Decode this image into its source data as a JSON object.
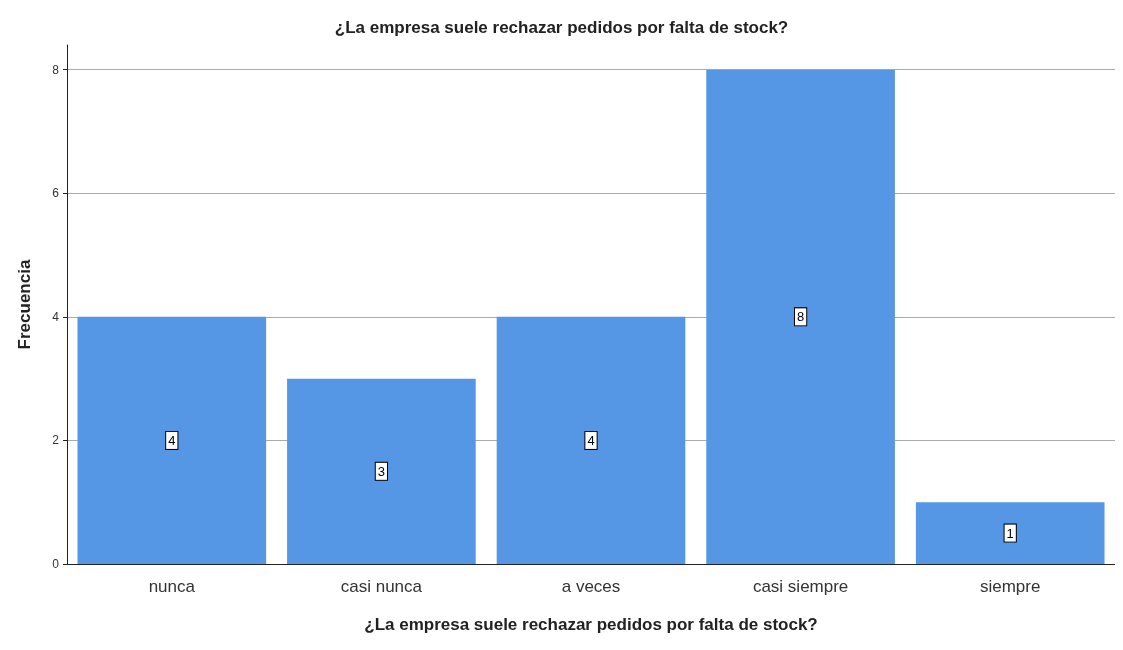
{
  "chart_data": {
    "type": "bar",
    "title": "¿La empresa suele rechazar pedidos por falta de stock?",
    "xlabel": "¿La empresa suele rechazar pedidos por falta de stock?",
    "ylabel": "Frecuencia",
    "categories": [
      "nunca",
      "casi nunca",
      "a veces",
      "casi siempre",
      "siempre"
    ],
    "values": [
      4,
      3,
      4,
      8,
      1
    ],
    "color": "#5596e5",
    "ylim": [
      0,
      8.4
    ],
    "yticks": [
      0,
      2,
      4,
      6,
      8
    ],
    "grid": "y",
    "data_labels": true
  }
}
